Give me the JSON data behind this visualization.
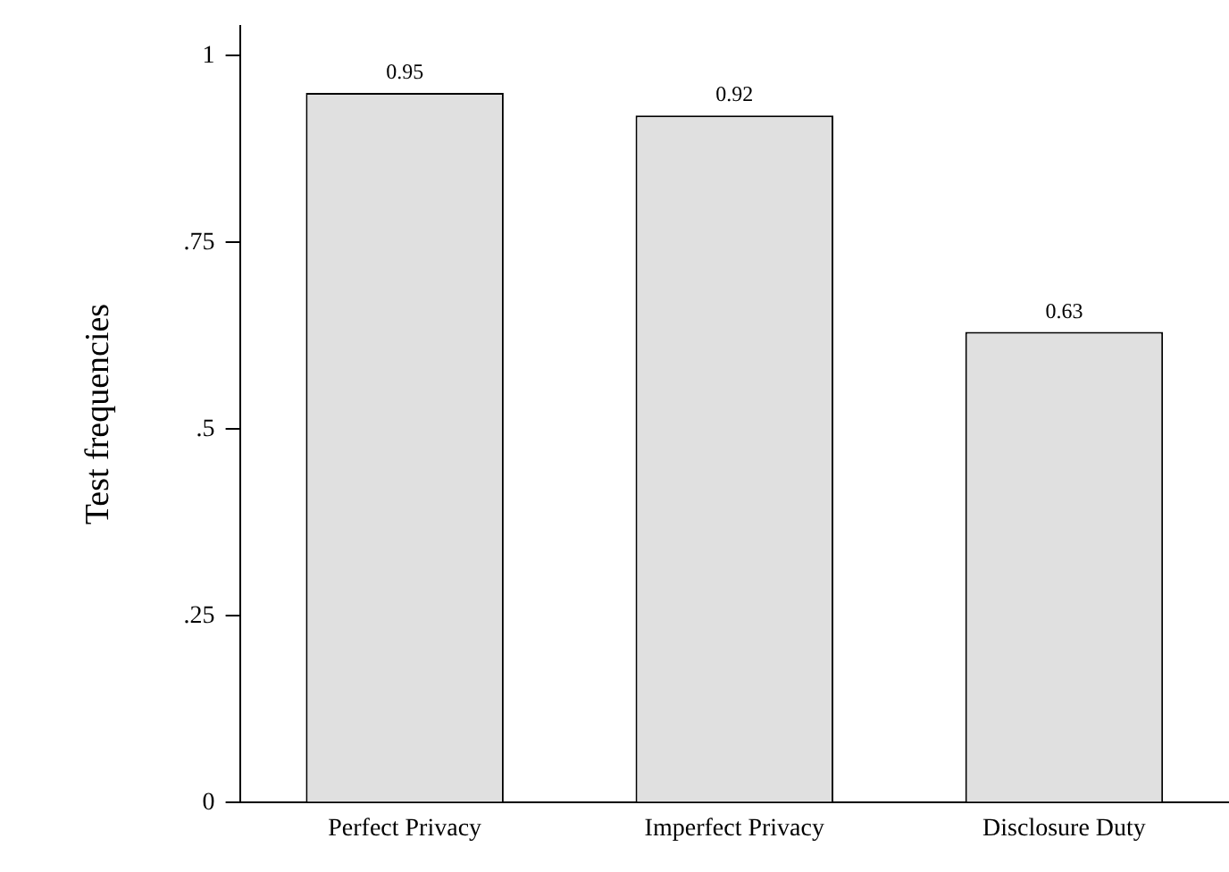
{
  "chart_data": {
    "type": "bar",
    "ylabel": "Test frequencies",
    "categories": [
      "Perfect Privacy",
      "Imperfect Privacy",
      "Disclosure Duty"
    ],
    "values": [
      0.95,
      0.92,
      0.63
    ],
    "color": "#e0e0e0",
    "ylim": [
      0,
      1.04
    ],
    "yticks": [
      {
        "value": 0,
        "label": "0"
      },
      {
        "value": 0.25,
        "label": ".25"
      },
      {
        "value": 0.5,
        "label": ".5"
      },
      {
        "value": 0.75,
        "label": ".75"
      },
      {
        "value": 1,
        "label": "1"
      }
    ],
    "grid": false,
    "legend": false,
    "data_labels": true
  }
}
